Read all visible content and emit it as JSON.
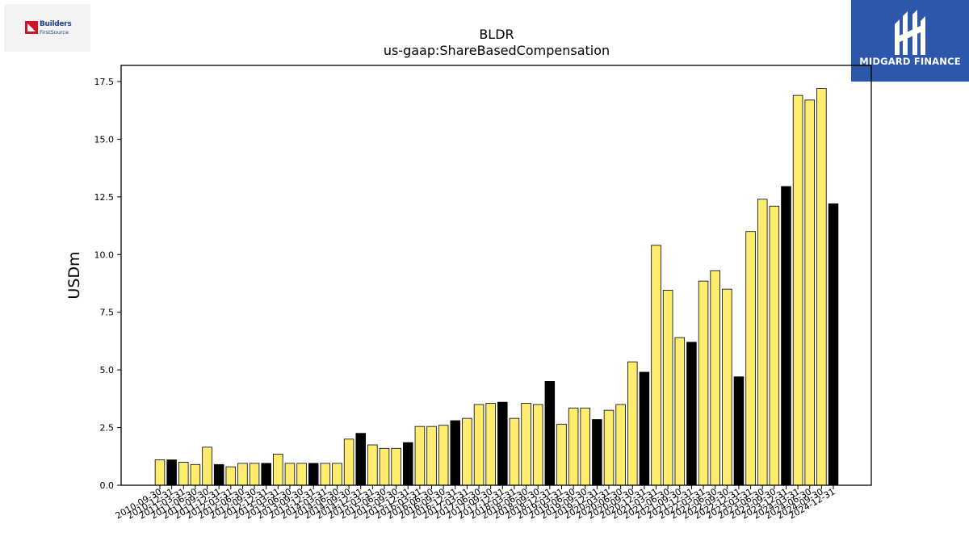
{
  "brand_left": {
    "line1": "Builders",
    "line2": "FirstSource"
  },
  "brand_right": {
    "name": "MIDGARD FINANCE"
  },
  "chart_data": {
    "type": "bar",
    "title": "BLDR",
    "subtitle": "us-gaap:ShareBasedCompensation",
    "xlabel": "",
    "ylabel": "USDm",
    "ylim": [
      0,
      18.2
    ],
    "yticks": [
      0.0,
      2.5,
      5.0,
      7.5,
      10.0,
      12.5,
      15.0,
      17.5
    ],
    "ytick_labels": [
      "0.0",
      "2.5",
      "5.0",
      "7.5",
      "10.0",
      "12.5",
      "15.0",
      "17.5"
    ],
    "grid": false,
    "colors": {
      "quarter": "#ffec6e",
      "fiscal_year_end": "#000000",
      "edge": "#000000"
    },
    "categories": [
      "2010-09-30",
      "2010-12-31",
      "2011-03-31",
      "2011-06-30",
      "2011-09-30",
      "2011-12-31",
      "2012-03-31",
      "2012-06-30",
      "2012-09-30",
      "2012-12-31",
      "2013-03-31",
      "2013-06-30",
      "2013-09-30",
      "2013-12-31",
      "2014-03-31",
      "2014-06-30",
      "2014-09-30",
      "2014-12-31",
      "2015-03-31",
      "2015-06-30",
      "2015-09-30",
      "2015-12-31",
      "2016-03-31",
      "2016-06-30",
      "2016-09-30",
      "2016-12-31",
      "2017-03-31",
      "2017-06-30",
      "2017-09-30",
      "2017-12-31",
      "2018-03-31",
      "2018-06-30",
      "2018-09-30",
      "2018-12-31",
      "2019-03-31",
      "2019-06-30",
      "2019-09-30",
      "2019-12-31",
      "2020-03-31",
      "2020-06-30",
      "2020-09-30",
      "2020-12-31",
      "2021-03-31",
      "2021-06-30",
      "2021-09-30",
      "2021-12-31",
      "2022-03-31",
      "2022-06-30",
      "2022-09-30",
      "2022-12-31",
      "2023-03-31",
      "2023-06-30",
      "2023-09-30",
      "2023-12-31",
      "2024-03-31",
      "2024-06-30",
      "2024-09-30",
      "2024-12-31"
    ],
    "values": [
      1.1,
      1.1,
      1.0,
      0.9,
      1.65,
      0.9,
      0.8,
      0.95,
      0.95,
      0.95,
      1.35,
      0.95,
      0.95,
      0.95,
      0.95,
      0.95,
      2.0,
      2.25,
      1.75,
      1.6,
      1.6,
      1.85,
      2.55,
      2.55,
      2.6,
      2.8,
      2.9,
      3.5,
      3.55,
      3.6,
      2.9,
      3.55,
      3.5,
      4.5,
      2.65,
      3.35,
      3.35,
      2.85,
      3.25,
      3.5,
      5.35,
      4.9,
      10.4,
      8.45,
      6.4,
      6.2,
      8.85,
      9.3,
      8.5,
      4.7,
      11.0,
      12.4,
      12.1,
      12.95,
      16.9,
      16.7,
      17.2,
      12.2
    ],
    "highlighted": [
      false,
      true,
      false,
      false,
      false,
      true,
      false,
      false,
      false,
      true,
      false,
      false,
      false,
      true,
      false,
      false,
      false,
      true,
      false,
      false,
      false,
      true,
      false,
      false,
      false,
      true,
      false,
      false,
      false,
      true,
      false,
      false,
      false,
      true,
      false,
      false,
      false,
      true,
      false,
      false,
      false,
      true,
      false,
      false,
      false,
      true,
      false,
      false,
      false,
      true,
      false,
      false,
      false,
      true,
      false,
      false,
      false,
      true
    ]
  }
}
